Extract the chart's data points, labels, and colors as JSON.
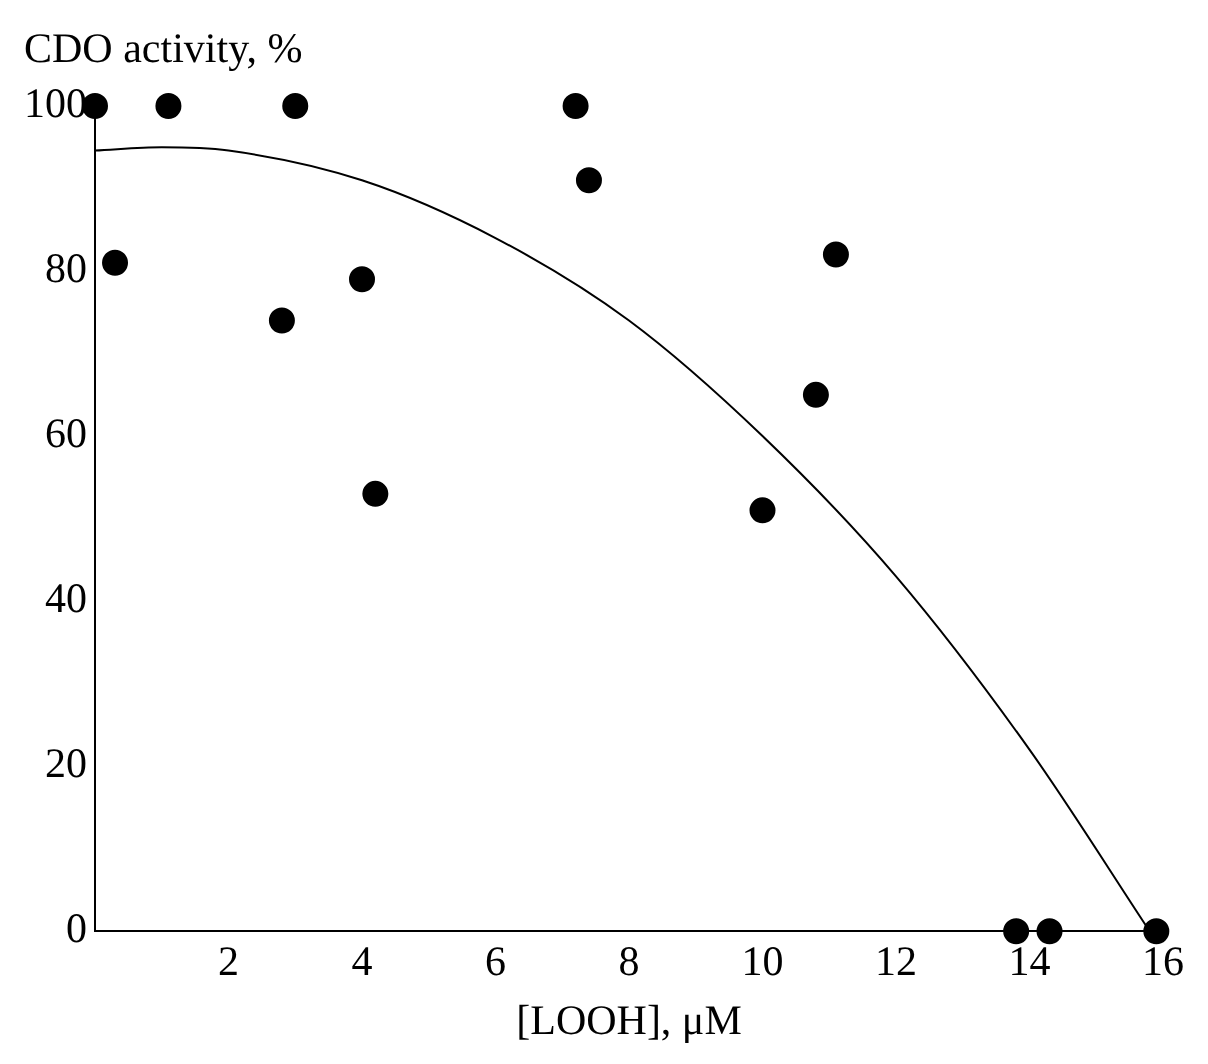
{
  "chart_data": {
    "type": "scatter",
    "ylabel": "CDO activity, %",
    "xlabel": "[LOOH], μM",
    "xlim": [
      0,
      16
    ],
    "xticks": [
      2,
      4,
      6,
      8,
      10,
      12,
      14,
      16
    ],
    "ylim": [
      0,
      100
    ],
    "yticks": [
      0,
      20,
      40,
      60,
      80,
      100
    ],
    "grid": false,
    "legend": false,
    "series": [
      {
        "type": "scatter",
        "color": "#000000",
        "marker": "circle",
        "x": [
          0,
          0.3,
          1.1,
          2.8,
          3.0,
          4.0,
          4.2,
          7.2,
          7.4,
          10.0,
          10.8,
          11.1,
          13.8,
          14.3,
          15.9
        ],
        "values": [
          100,
          81,
          100,
          74,
          100,
          79,
          53,
          100,
          91,
          51,
          65,
          82,
          0,
          0,
          0
        ]
      },
      {
        "type": "line",
        "color": "#000000",
        "marker": "none",
        "line_style": "solid",
        "x": [
          0,
          1,
          2,
          4,
          6,
          8,
          10,
          12,
          14,
          15.8
        ],
        "values": [
          94.6,
          95,
          94.6,
          91,
          84,
          74,
          60,
          43,
          22,
          0
        ]
      }
    ]
  }
}
